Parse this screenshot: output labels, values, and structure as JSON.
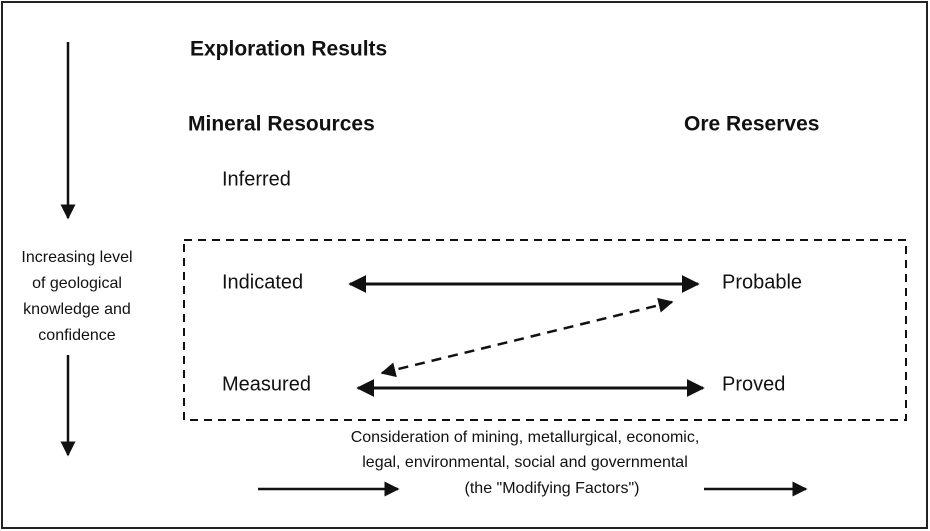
{
  "title": "Exploration Results",
  "columns": {
    "left": "Mineral Resources",
    "right": "Ore Reserves"
  },
  "nodes": [
    "Inferred",
    "Indicated",
    "Measured",
    "Probable",
    "Proved"
  ],
  "side_label": [
    "Increasing level",
    "of geological",
    "knowledge and",
    "confidence"
  ],
  "footer": [
    "Consideration of mining, metallurgical, economic,",
    "legal, environmental, social and governmental",
    "(the \"Modifying Factors\")"
  ]
}
